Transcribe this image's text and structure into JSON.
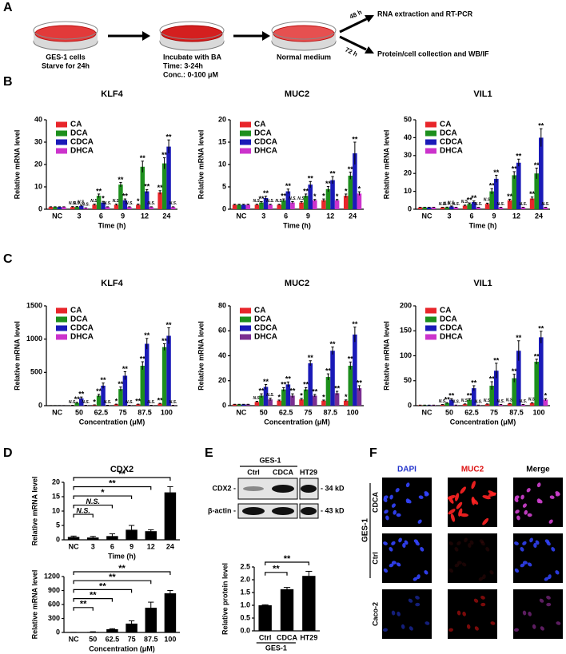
{
  "panel_labels": [
    "A",
    "B",
    "C",
    "D",
    "E",
    "F"
  ],
  "panel_a": {
    "dish_1": [
      "GES-1 cells",
      "Starve for 24h"
    ],
    "dish_2": [
      "Incubate with BA",
      "Time: 3-24h",
      "Conc.: 0-100 μM"
    ],
    "dish_3": [
      "Normal medium"
    ],
    "branches": [
      {
        "time": "48 h",
        "label": "RNA extraction and RT-PCR"
      },
      {
        "time": "72 h",
        "label": "Protein/cell collection and WB/IF"
      }
    ]
  },
  "chart_data": [
    {
      "type": "bar",
      "title": "KLF4",
      "x_label": "Time (h)",
      "y_label": "Relative mRNA level",
      "categories": [
        "NC",
        "3",
        "6",
        "9",
        "12",
        "24"
      ],
      "ylim": [
        0,
        40
      ],
      "yticks": [
        0,
        10,
        20,
        30,
        40
      ],
      "series": [
        {
          "name": "CA",
          "color": "#e8262b",
          "values": [
            1,
            1,
            2,
            2,
            2,
            7.5
          ],
          "errors": [
            0.1,
            0.2,
            0.3,
            0.3,
            0.3,
            0.8
          ],
          "significance": [
            null,
            "N.S.",
            "N.S.",
            "N.S.",
            "*",
            "**"
          ]
        },
        {
          "name": "DCA",
          "color": "#1d8f1d",
          "values": [
            1,
            1,
            6,
            11,
            19,
            20.5
          ],
          "errors": [
            0.1,
            0.2,
            0.8,
            1,
            2.5,
            2.5
          ],
          "significance": [
            null,
            "N.S.",
            "**",
            "**",
            "**",
            "**"
          ]
        },
        {
          "name": "CDCA",
          "color": "#1a1ab8",
          "values": [
            1,
            1.5,
            3,
            4,
            8,
            28
          ],
          "errors": [
            0.1,
            0.3,
            0.5,
            0.6,
            0.8,
            3
          ],
          "significance": [
            null,
            "N.S.",
            "*",
            "**",
            "**",
            "**"
          ]
        },
        {
          "name": "DHCA",
          "color": "#cc33cc",
          "values": [
            1,
            0.5,
            1,
            1,
            1,
            1
          ],
          "errors": [
            0.1,
            0.1,
            0.1,
            0.1,
            0.1,
            0.1
          ],
          "significance": [
            null,
            "N.S.",
            "N.S.",
            "N.S.",
            "N.S.",
            "N.S."
          ]
        }
      ]
    },
    {
      "type": "bar",
      "title": "MUC2",
      "x_label": "Time (h)",
      "y_label": "Relative mRNA level",
      "categories": [
        "NC",
        "3",
        "6",
        "9",
        "12",
        "24"
      ],
      "ylim": [
        0,
        20
      ],
      "yticks": [
        0,
        5,
        10,
        15,
        20
      ],
      "series": [
        {
          "name": "CA",
          "color": "#e8262b",
          "values": [
            1,
            1,
            1,
            1.5,
            2,
            3
          ],
          "errors": [
            0.1,
            0.1,
            0.1,
            0.2,
            0.3,
            0.4
          ],
          "significance": [
            null,
            "N.S.",
            "N.S.",
            "N.S.",
            "*",
            "*"
          ]
        },
        {
          "name": "DCA",
          "color": "#1d8f1d",
          "values": [
            1,
            1.5,
            2,
            3,
            4.5,
            7.5
          ],
          "errors": [
            0.1,
            0.2,
            0.3,
            0.4,
            0.6,
            0.8
          ],
          "significance": [
            null,
            "**",
            "**",
            "**",
            "**",
            "**"
          ]
        },
        {
          "name": "CDCA",
          "color": "#1a1ab8",
          "values": [
            1,
            2.5,
            4,
            5.5,
            6.5,
            12.5
          ],
          "errors": [
            0.1,
            0.4,
            0.5,
            0.7,
            0.8,
            2.5
          ],
          "significance": [
            null,
            "**",
            "**",
            "**",
            "**",
            "**"
          ]
        },
        {
          "name": "DHCA",
          "color": "#cc33cc",
          "values": [
            1,
            1,
            1.5,
            2,
            2,
            3.5
          ],
          "errors": [
            0.1,
            0.1,
            0.2,
            0.2,
            0.2,
            0.4
          ],
          "significance": [
            null,
            "N.S.",
            "N.S.",
            "*",
            "*",
            "*"
          ]
        }
      ]
    },
    {
      "type": "bar",
      "title": "VIL1",
      "x_label": "Time (h)",
      "y_label": "Relative mRNA level",
      "categories": [
        "NC",
        "3",
        "6",
        "9",
        "12",
        "24"
      ],
      "ylim": [
        0,
        50
      ],
      "yticks": [
        0,
        10,
        20,
        30,
        40,
        50
      ],
      "series": [
        {
          "name": "CA",
          "color": "#e8262b",
          "values": [
            1,
            1,
            2,
            3,
            5,
            6
          ],
          "errors": [
            0.1,
            0.1,
            0.3,
            0.4,
            0.6,
            0.8
          ],
          "significance": [
            null,
            "N.S.",
            "N.S.",
            "N.S.",
            "**",
            "**"
          ]
        },
        {
          "name": "DCA",
          "color": "#1d8f1d",
          "values": [
            1,
            1,
            3,
            10,
            19,
            20
          ],
          "errors": [
            0.1,
            0.2,
            0.5,
            1.5,
            2,
            3
          ],
          "significance": [
            null,
            "N.S.",
            "**",
            "**",
            "**",
            "**"
          ]
        },
        {
          "name": "CDCA",
          "color": "#1a1ab8",
          "values": [
            1,
            1.5,
            4,
            17,
            26,
            40
          ],
          "errors": [
            0.1,
            0.3,
            0.6,
            2,
            2,
            5
          ],
          "significance": [
            null,
            "N.S.",
            "**",
            "**",
            "**",
            "**"
          ]
        },
        {
          "name": "DHCA",
          "color": "#cc33cc",
          "values": [
            1,
            1,
            1,
            1,
            1,
            1
          ],
          "errors": [
            0.1,
            0.1,
            0.1,
            0.1,
            0.1,
            0.1
          ],
          "significance": [
            null,
            "N.S.",
            "N.S.",
            "N.S.",
            "N.S.",
            "N.S."
          ]
        }
      ]
    },
    {
      "type": "bar",
      "title": "KLF4",
      "x_label": "Concentration (μM)",
      "y_label": "Relative mRNA level",
      "categories": [
        "NC",
        "50",
        "62.5",
        "75",
        "87.5",
        "100"
      ],
      "ylim": [
        0,
        1500
      ],
      "yticks": [
        0,
        500,
        1000,
        1500
      ],
      "series": [
        {
          "name": "CA",
          "color": "#e8262b",
          "values": [
            1,
            5,
            10,
            20,
            20,
            30
          ],
          "errors": [
            0.5,
            1,
            2,
            3,
            3,
            5
          ],
          "significance": [
            null,
            "N.S.",
            "*",
            "*",
            "**",
            "**"
          ]
        },
        {
          "name": "DCA",
          "color": "#1d8f1d",
          "values": [
            1,
            40,
            150,
            250,
            600,
            880
          ],
          "errors": [
            0.5,
            10,
            20,
            30,
            60,
            50
          ],
          "significance": [
            null,
            "**",
            "**",
            "**",
            "**",
            "**"
          ]
        },
        {
          "name": "CDCA",
          "color": "#1a1ab8",
          "values": [
            1,
            110,
            300,
            450,
            930,
            1050
          ],
          "errors": [
            0.5,
            20,
            40,
            60,
            80,
            120
          ],
          "significance": [
            null,
            "**",
            "**",
            "**",
            "**",
            "**"
          ]
        },
        {
          "name": "DHCA",
          "color": "#cc33cc",
          "values": [
            1,
            5,
            5,
            5,
            5,
            5
          ],
          "errors": [
            0.5,
            1,
            1,
            1,
            1,
            1
          ],
          "significance": [
            null,
            "N.S.",
            "N.S.",
            "N.S.",
            "N.S.",
            "N.S."
          ]
        }
      ]
    },
    {
      "type": "bar",
      "title": "MUC2",
      "x_label": "Concentration (μM)",
      "y_label": "Relative mRNA level",
      "categories": [
        "NC",
        "50",
        "62.5",
        "75",
        "87.5",
        "100"
      ],
      "ylim": [
        0,
        80
      ],
      "yticks": [
        0,
        20,
        40,
        60,
        80
      ],
      "series": [
        {
          "name": "CA",
          "color": "#e8262b",
          "values": [
            1,
            3,
            4,
            5,
            4,
            4
          ],
          "errors": [
            0.1,
            0.5,
            0.5,
            0.8,
            0.5,
            0.6
          ],
          "significance": [
            null,
            "N.S.",
            "*",
            "*",
            "*",
            "*"
          ]
        },
        {
          "name": "DCA",
          "color": "#1d8f1d",
          "values": [
            1,
            8,
            13,
            13,
            23,
            32
          ],
          "errors": [
            0.1,
            1.5,
            1.5,
            1.5,
            2.5,
            3
          ],
          "significance": [
            null,
            "**",
            "**",
            "**",
            "**",
            "**"
          ]
        },
        {
          "name": "CDCA",
          "color": "#1a1ab8",
          "values": [
            1,
            15,
            17,
            34,
            44,
            57
          ],
          "errors": [
            0.1,
            2,
            2,
            2,
            3,
            6
          ],
          "significance": [
            null,
            "**",
            "**",
            "**",
            "**",
            "**"
          ]
        },
        {
          "name": "DHCA",
          "color": "#7b2f91",
          "values": [
            1,
            5,
            8,
            8,
            10,
            14
          ],
          "errors": [
            0.1,
            1,
            1.5,
            1,
            1.5,
            2
          ],
          "significance": [
            null,
            "N.S.",
            "**",
            "**",
            "**",
            "**"
          ]
        }
      ]
    },
    {
      "type": "bar",
      "title": "VIL1",
      "x_label": "Concentration (μM)",
      "y_label": "Relative mRNA level",
      "categories": [
        "NC",
        "50",
        "62.5",
        "75",
        "87.5",
        "100"
      ],
      "ylim": [
        0,
        200
      ],
      "yticks": [
        0,
        50,
        100,
        150,
        200
      ],
      "series": [
        {
          "name": "CA",
          "color": "#e8262b",
          "values": [
            1,
            2,
            3,
            3,
            4,
            5
          ],
          "errors": [
            0.1,
            0.3,
            0.5,
            0.5,
            0.5,
            0.8
          ],
          "significance": [
            null,
            "N.S.",
            "N.S.",
            "N.S.",
            "N.S.",
            "N.S."
          ]
        },
        {
          "name": "DCA",
          "color": "#1d8f1d",
          "values": [
            1,
            5,
            12,
            40,
            55,
            88
          ],
          "errors": [
            0.1,
            1,
            2,
            8,
            8,
            5
          ],
          "significance": [
            null,
            "**",
            "**",
            "**",
            "**",
            "**"
          ]
        },
        {
          "name": "CDCA",
          "color": "#1a1ab8",
          "values": [
            1,
            12,
            35,
            70,
            110,
            137
          ],
          "errors": [
            0.1,
            2,
            5,
            15,
            20,
            12
          ],
          "significance": [
            null,
            "**",
            "**",
            "**",
            "**",
            "**"
          ]
        },
        {
          "name": "DHCA",
          "color": "#cc33cc",
          "values": [
            1,
            1,
            1,
            2,
            2,
            12
          ],
          "errors": [
            0.1,
            0.2,
            0.2,
            0.3,
            0.3,
            2
          ],
          "significance": [
            null,
            "N.S.",
            "N.S.",
            "N.S.",
            "N.S.",
            "*"
          ]
        }
      ]
    },
    {
      "type": "bar",
      "title": "CDX2",
      "x_label": "Time (h)",
      "y_label": "Relative mRNA level",
      "color": "#000000",
      "categories": [
        "NC",
        "3",
        "6",
        "9",
        "12",
        "24"
      ],
      "ylim": [
        0,
        20
      ],
      "yticks": [
        0,
        5,
        10,
        15,
        20
      ],
      "values": [
        1,
        0.8,
        1.3,
        3.5,
        3,
        16.5
      ],
      "errors": [
        0.3,
        0.4,
        0.8,
        1.5,
        0.5,
        2
      ],
      "significance": [
        null,
        "N.S.",
        "N.S.",
        "*",
        "**",
        "**"
      ]
    },
    {
      "type": "bar",
      "x_label": "Concentration (μM)",
      "y_label": "Relative mRNA level",
      "color": "#000000",
      "categories": [
        "NC",
        "50",
        "62.5",
        "75",
        "87.5",
        "100"
      ],
      "ylim": [
        0,
        1200
      ],
      "yticks": [
        0,
        300,
        600,
        900,
        1200
      ],
      "values": [
        1,
        10,
        70,
        190,
        530,
        840
      ],
      "errors": [
        1,
        5,
        10,
        60,
        120,
        60
      ],
      "significance": [
        null,
        "**",
        "**",
        "**",
        "**",
        "**"
      ]
    },
    {
      "type": "bar",
      "y_label": "Relative protein level",
      "color": "#000000",
      "group_label": "GES-1",
      "categories": [
        "Ctrl",
        "CDCA",
        "HT29"
      ],
      "ylim": [
        0,
        2.5
      ],
      "yticks": [
        {
          "value": 0,
          "label": "0.0"
        },
        0.5,
        {
          "value": 1,
          "label": "1.0"
        },
        1.5,
        {
          "value": 2,
          "label": "2.0"
        },
        2.5
      ],
      "values": [
        1,
        1.63,
        2.15
      ],
      "errors": [
        0.02,
        0.07,
        0.18
      ],
      "significance": [
        null,
        "**",
        "**"
      ]
    }
  ],
  "panel_e_blot": {
    "group": "GES-1",
    "lanes": [
      "Ctrl",
      "CDCA",
      "HT29"
    ],
    "rows": [
      {
        "protein": "CDX2 -",
        "size": "- 34 kD"
      },
      {
        "protein": "β-actin -",
        "size": "- 43 kD"
      }
    ]
  },
  "panel_f": {
    "columns": [
      "DAPI",
      "MUC2",
      "Merge"
    ],
    "rows": [
      "CDCA",
      "Ctrl",
      "Caco-2"
    ],
    "group": "GES-1"
  }
}
